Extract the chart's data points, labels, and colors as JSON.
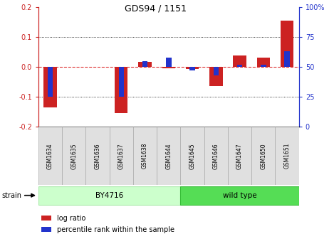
{
  "title": "GDS94 / 1151",
  "samples": [
    "GSM1634",
    "GSM1635",
    "GSM1636",
    "GSM1637",
    "GSM1638",
    "GSM1644",
    "GSM1645",
    "GSM1646",
    "GSM1647",
    "GSM1650",
    "GSM1651"
  ],
  "log_ratio": [
    -0.135,
    0.0,
    0.0,
    -0.155,
    0.018,
    -0.005,
    -0.008,
    -0.065,
    0.038,
    0.032,
    0.155
  ],
  "percentile_rank": [
    25,
    50,
    50,
    25,
    55,
    58,
    47,
    43,
    52,
    52,
    63
  ],
  "group_configs": [
    {
      "start": 0,
      "end": 6,
      "label": "BY4716",
      "facecolor": "#ccffcc",
      "edgecolor": "#aaeaaa"
    },
    {
      "start": 6,
      "end": 11,
      "label": "wild type",
      "facecolor": "#55dd55",
      "edgecolor": "#33bb33"
    }
  ],
  "ylim": [
    -0.2,
    0.2
  ],
  "yticks_left": [
    -0.2,
    -0.1,
    0.0,
    0.1,
    0.2
  ],
  "yticks_right": [
    0,
    25,
    50,
    75,
    100
  ],
  "hline_zero_color": "#dd3333",
  "hline_dotted_color": "#000000",
  "bar_color_red": "#cc2222",
  "bar_color_blue": "#2233cc",
  "bar_width": 0.55,
  "blue_bar_width": 0.22,
  "legend_labels": [
    "log ratio",
    "percentile rank within the sample"
  ],
  "legend_colors": [
    "#cc2222",
    "#2233cc"
  ],
  "strain_label": "strain",
  "left_tick_color": "#cc2222",
  "right_tick_color": "#2233cc"
}
